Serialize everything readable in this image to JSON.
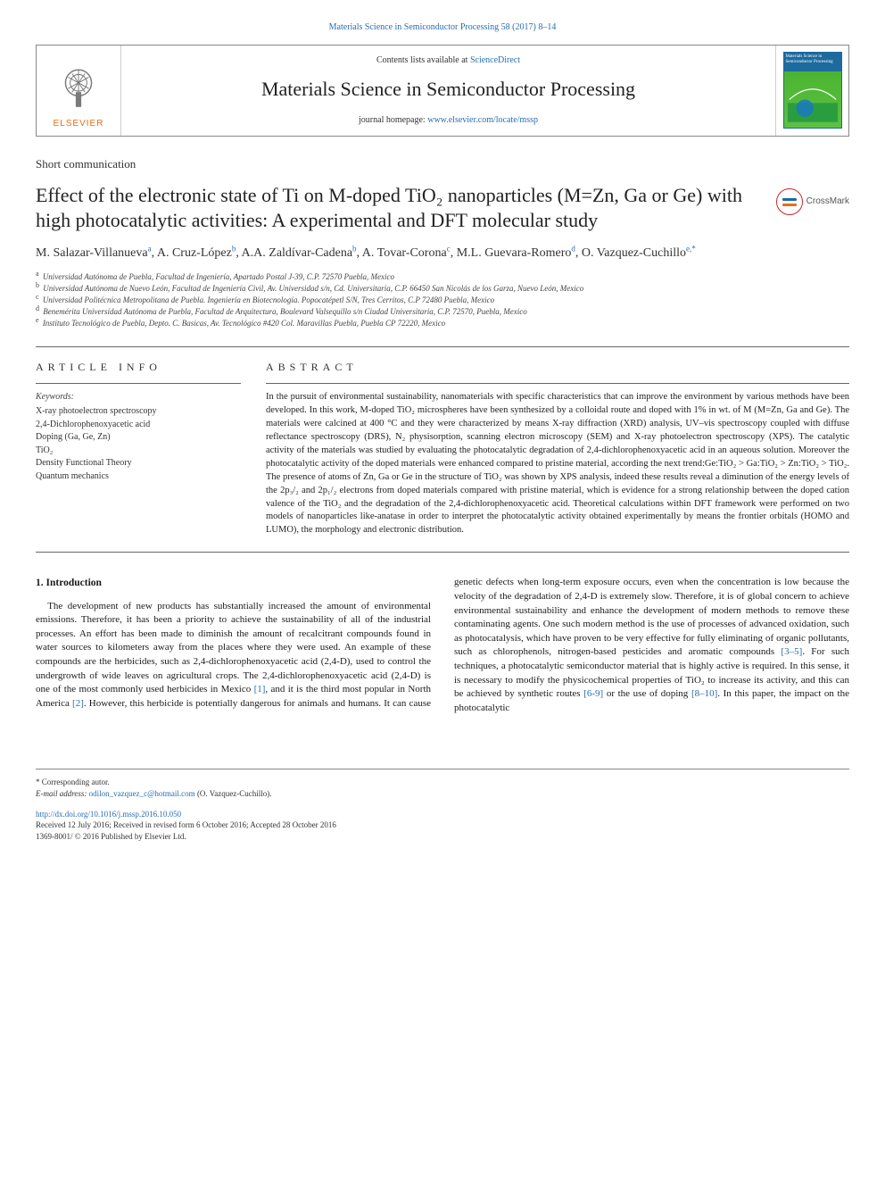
{
  "topline": "Materials Science in Semiconductor Processing 58 (2017) 8–14",
  "header": {
    "contents_prefix": "Contents lists available at ",
    "contents_link": "ScienceDirect",
    "journal_name": "Materials Science in Semiconductor Processing",
    "homepage_prefix": "journal homepage: ",
    "homepage_url": "www.elsevier.com/locate/mssp",
    "publisher_word": "ELSEVIER",
    "cover_label": "Materials Science in Semiconductor Processing"
  },
  "article": {
    "section_label": "Short communication",
    "title": "Effect of the electronic state of Ti on M-doped TiO₂ nanoparticles (M=Zn, Ga or Ge) with high photocatalytic activities: A experimental and DFT molecular study",
    "crossmark_label": "CrossMark",
    "authors_html": "M. Salazar-Villanueva<sup>a</sup>, A. Cruz-López<sup>b</sup>, A.A. Zaldívar-Cadena<sup>b</sup>, A. Tovar-Corona<sup>c</sup>, M.L. Guevara-Romero<sup>d</sup>, O. Vazquez-Cuchillo<sup>e,*</sup>",
    "affiliations": [
      {
        "sup": "a",
        "text": "Universidad Autónoma de Puebla, Facultad de Ingeniería, Apartado Postal J-39, C.P. 72570 Puebla, Mexico"
      },
      {
        "sup": "b",
        "text": "Universidad Autónoma de Nuevo León, Facultad de Ingeniería Civil, Av. Universidad s/n, Cd. Universitaria, C.P. 66450 San Nicolás de los Garza, Nuevo León, Mexico"
      },
      {
        "sup": "c",
        "text": "Universidad Politécnica Metropolitana de Puebla. Ingeniería en Biotecnología. Popocatépetl S/N, Tres Cerritos, C.P 72480 Puebla, Mexico"
      },
      {
        "sup": "d",
        "text": "Benemérita Universidad Autónoma de Puebla, Facultad de Arquitectura, Boulevard Valsequillo s/n Ciudad Universitaria, C.P. 72570, Puebla, Mexico"
      },
      {
        "sup": "e",
        "text": "Instituto Tecnológico de Puebla, Depto. C. Basicas, Av. Tecnológico #420 Col. Maravillas Puebla, Puebla CP 72220, Mexico"
      }
    ]
  },
  "info": {
    "heading": "ARTICLE INFO",
    "keywords_label": "Keywords:",
    "keywords": [
      "X-ray photoelectron spectroscopy",
      "2,4-Dichlorophenoxyacetic acid",
      "Doping (Ga, Ge, Zn)",
      "TiO₂",
      "Density Functional Theory",
      "Quantum mechanics"
    ]
  },
  "abstract": {
    "heading": "ABSTRACT",
    "text": "In the pursuit of environmental sustainability, nanomaterials with specific characteristics that can improve the environment by various methods have been developed. In this work, M-doped TiO₂ microspheres have been synthesized by a colloidal route and doped with 1% in wt. of M (M=Zn, Ga and Ge). The materials were calcined at 400 °C and they were characterized by means X-ray diffraction (XRD) analysis, UV–vis spectroscopy coupled with diffuse reflectance spectroscopy (DRS), N₂ physisorption, scanning electron microscopy (SEM) and X-ray photoelectron spectroscopy (XPS). The catalytic activity of the materials was studied by evaluating the photocatalytic degradation of 2,4-dichlorophenoxyacetic acid in an aqueous solution. Moreover the photocatalytic activity of the doped materials were enhanced compared to pristine material, according the next trend:Ge:TiO₂ > Ga:TiO₂ > Zn:TiO₂ > TiO₂. The presence of atoms of Zn, Ga or Ge in the structure of TiO₂ was shown by XPS analysis, indeed these results reveal a diminution of the energy levels of the 2p₃/₂ and 2p₁/₂ electrons from doped materials compared with pristine material, which is evidence for a strong relationship between the doped cation valence of the TiO₂ and the degradation of the 2,4-dichlorophenoxyacetic acid. Theoretical calculations within DFT framework were performed on two models of nanoparticles like-anatase in order to interpret the photocatalytic activity obtained experimentally by means the frontier orbitals (HOMO and LUMO), the morphology and electronic distribution."
  },
  "body": {
    "heading": "1. Introduction",
    "para1_html": "The development of new products has substantially increased the amount of environmental emissions. Therefore, it has been a priority to achieve the sustainability of all of the industrial processes. An effort has been made to diminish the amount of recalcitrant compounds found in water sources to kilometers away from the places where they were used. An example of these compounds are the herbicides, such as 2,4-dichlorophenoxyacetic acid (2,4-D), used to control the undergrowth of wide leaves on agricultural crops. The 2,4-dichlorophenoxyacetic acid (2,4-D) is one of the most commonly used herbicides in Mexico <a class=\"ref\" data-name=\"citation-link\" data-interactable=\"true\">[1]</a>, and it is the third most popular in North America <a class=\"ref\" data-name=\"citation-link\" data-interactable=\"true\">[2]</a>. However, this herbicide is potentially dangerous for animals and humans. It can cause genetic defects when long-term exposure occurs, even when the concentration is low because the velocity of the degradation of 2,4-D is extremely slow. Therefore, it is of global concern to achieve environmental sustainability and enhance the development of modern methods to remove these contaminating agents. One such modern method is the use of processes of advanced oxidation, such as photocatalysis, which have proven to be very effective for fully eliminating of organic pollutants, such as chlorophenols, nitrogen-based pesticides and aromatic compounds <a class=\"ref\" data-name=\"citation-link\" data-interactable=\"true\">[3–5]</a>. For such techniques, a photocatalytic semiconductor material that is highly active is required. In this sense, it is necessary to modify the physicochemical properties of TiO₂ to increase its activity, and this can be achieved by synthetic routes <a class=\"ref\" data-name=\"citation-link\" data-interactable=\"true\">[6-9]</a> or the use of doping <a class=\"ref\" data-name=\"citation-link\" data-interactable=\"true\">[8–10]</a>. In this paper, the impact on the photocatalytic"
  },
  "footer": {
    "corresp_marker": "* Corresponding autor.",
    "email_label": "E-mail address: ",
    "email": "odilon_vazquez_c@hotmail.com",
    "email_attrib": " (O. Vazquez-Cuchillo).",
    "doi": "http://dx.doi.org/10.1016/j.mssp.2016.10.050",
    "history": "Received 12 July 2016; Received in revised form 6 October 2016; Accepted 28 October 2016",
    "copyright": "1369-8001/ © 2016 Published by Elsevier Ltd."
  },
  "colors": {
    "link": "#2a6db0",
    "elsevier_orange": "#ed6c0c",
    "crossmark_red": "#c62828",
    "rule": "#666666",
    "text": "#1a1a1a",
    "background": "#ffffff"
  },
  "typography": {
    "title_pt": 22,
    "journal_pt": 22,
    "body_pt": 11,
    "abstract_pt": 10.5,
    "affil_pt": 9,
    "footer_pt": 9
  }
}
